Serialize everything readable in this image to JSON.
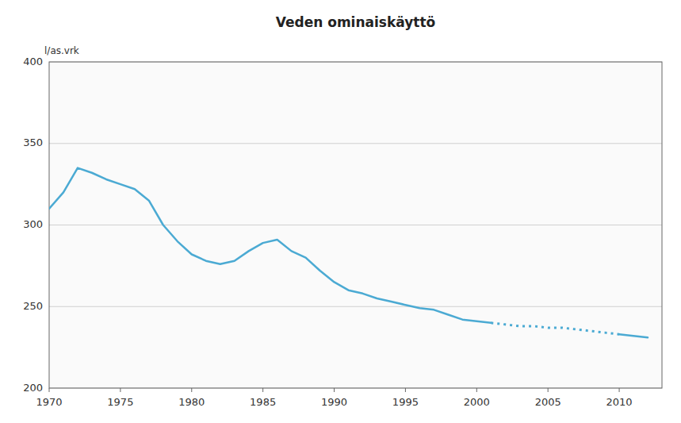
{
  "chart_data": {
    "type": "line",
    "title": "Veden ominaiskäyttö",
    "ylabel": "l/as.vrk",
    "xlim": [
      1970,
      2013
    ],
    "ylim": [
      200,
      400
    ],
    "xticks": [
      1970,
      1975,
      1980,
      1985,
      1990,
      1995,
      2000,
      2005,
      2010
    ],
    "yticks": [
      200,
      250,
      300,
      350,
      400
    ],
    "grid": true,
    "series": [
      {
        "color": "#4BAAD3",
        "line_style": "solid",
        "x": [
          1970,
          1971,
          1972,
          1973,
          1974,
          1975,
          1976,
          1977,
          1978,
          1979,
          1980,
          1981,
          1982,
          1983,
          1984,
          1985,
          1986,
          1987,
          1988,
          1989,
          1990,
          1991,
          1992,
          1993,
          1994,
          1995,
          1996,
          1997,
          1998,
          1999,
          2000,
          2001
        ],
        "values": [
          310,
          320,
          335,
          332,
          328,
          325,
          322,
          315,
          300,
          290,
          282,
          278,
          276,
          278,
          284,
          289,
          291,
          284,
          280,
          272,
          265,
          260,
          258,
          255,
          253,
          251,
          249,
          248,
          245,
          242,
          241,
          240
        ]
      },
      {
        "color": "#4BAAD3",
        "line_style": "dotted",
        "x": [
          2001,
          2002,
          2003,
          2004,
          2005,
          2006,
          2007,
          2008,
          2009,
          2010
        ],
        "values": [
          240,
          239,
          238,
          238,
          237,
          237,
          236,
          235,
          234,
          233
        ]
      },
      {
        "color": "#4BAAD3",
        "line_style": "solid",
        "x": [
          2010,
          2011,
          2012
        ],
        "values": [
          233,
          232,
          231
        ]
      }
    ]
  }
}
